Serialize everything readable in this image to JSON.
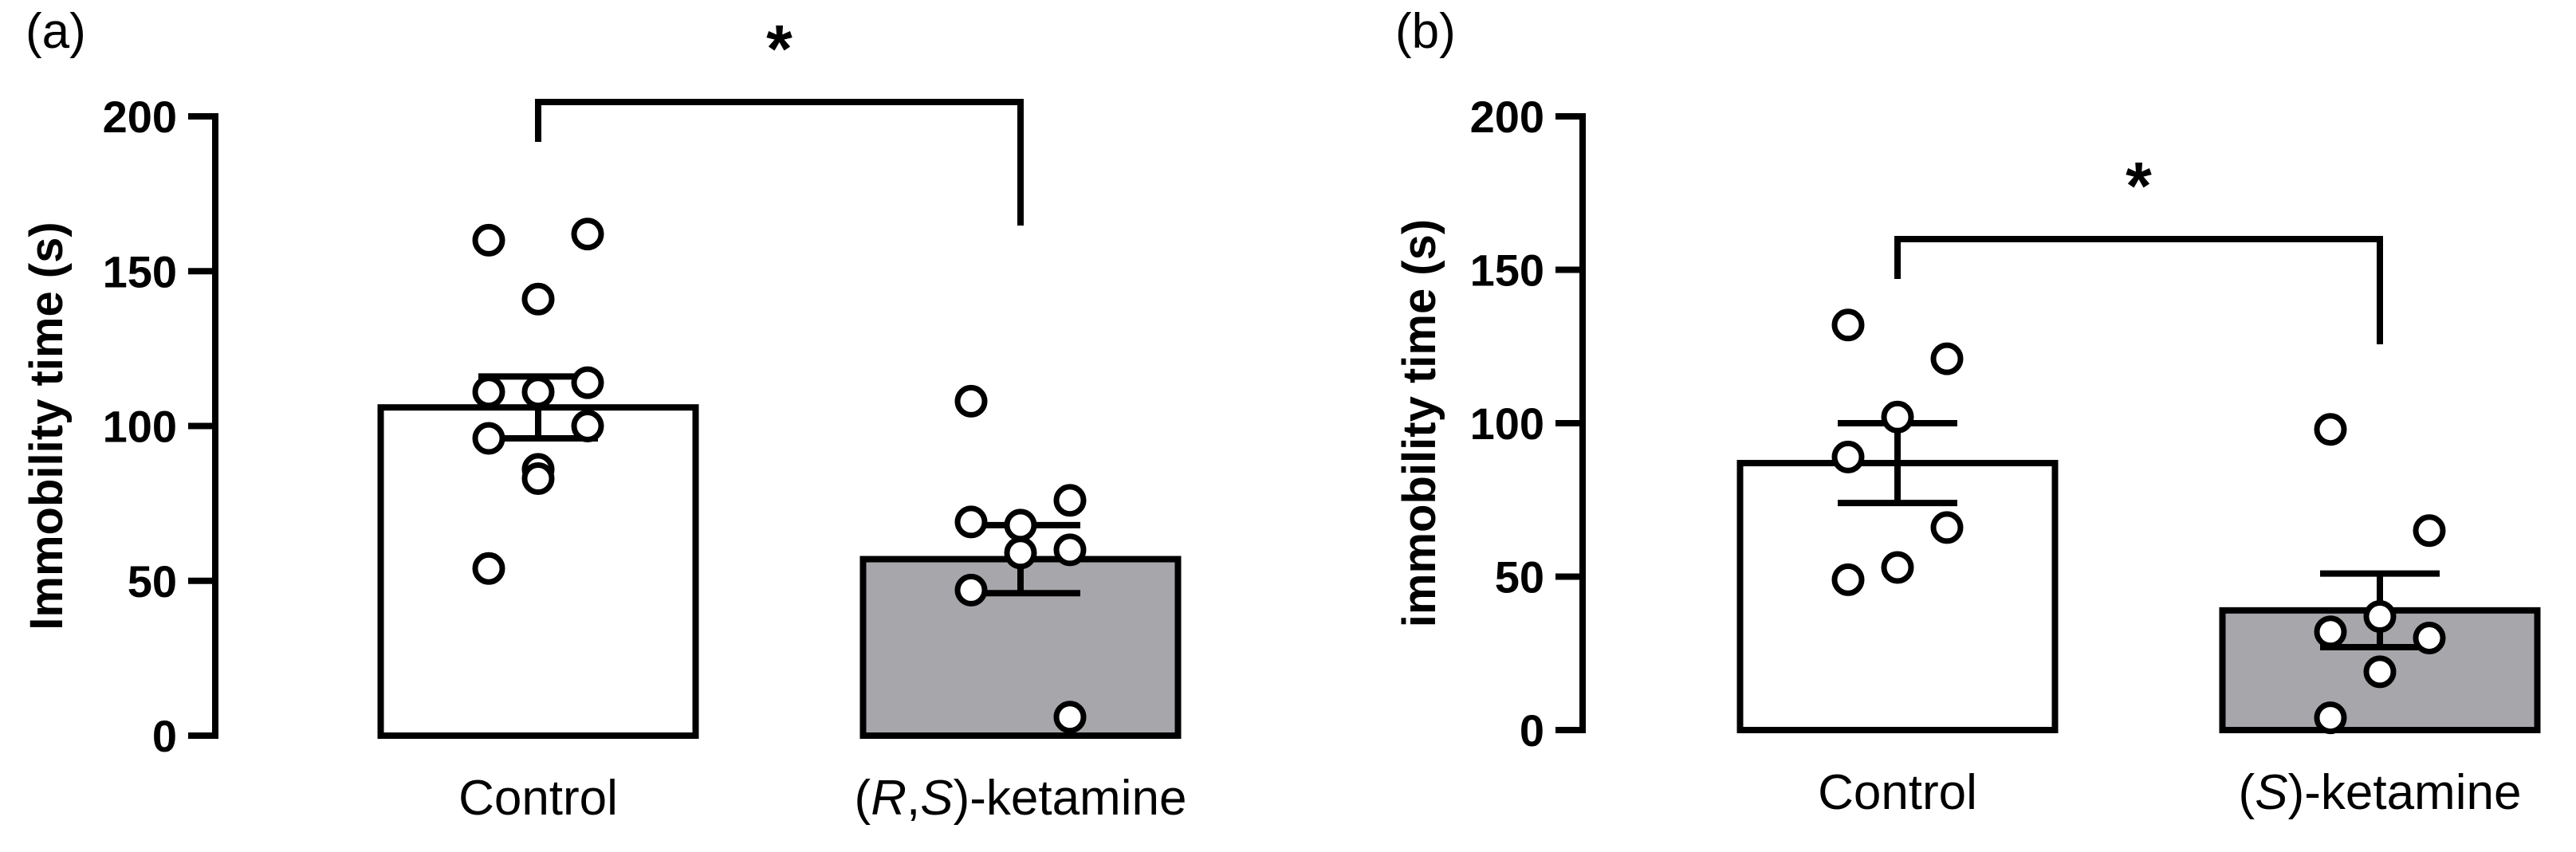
{
  "chart_data": [
    {
      "type": "bar",
      "panel_label": "(a)",
      "ylabel": "Immobility time (s)",
      "ylim": [
        0,
        200
      ],
      "yticks": [
        "0",
        "50",
        "100",
        "150",
        "200"
      ],
      "categories": [
        {
          "label": "Control",
          "italic_parts": []
        },
        {
          "label": "(R,S)-ketamine",
          "italic_parts": [
            "R",
            "S"
          ]
        }
      ],
      "bars": [
        {
          "mean": 106,
          "sem": 10,
          "fill": "#ffffff",
          "points": [
            160,
            162,
            141,
            111,
            114,
            111,
            96,
            100,
            86,
            83,
            54
          ]
        },
        {
          "mean": 57,
          "sem": 11,
          "fill": "#a7a6ab",
          "points": [
            108,
            76,
            68,
            69,
            60,
            59,
            47,
            6
          ]
        }
      ],
      "significance": {
        "between": [
          0,
          1
        ],
        "label": "*"
      }
    },
    {
      "type": "bar",
      "panel_label": "(b)",
      "ylabel": "immobility time (s)",
      "ylim": [
        0,
        200
      ],
      "yticks": [
        "0",
        "50",
        "100",
        "150",
        "200"
      ],
      "categories": [
        {
          "label": "Control",
          "italic_parts": []
        },
        {
          "label": "(S)-ketamine",
          "italic_parts": [
            "S"
          ]
        }
      ],
      "bars": [
        {
          "mean": 87,
          "sem": 13,
          "fill": "#ffffff",
          "points": [
            132,
            121,
            102,
            89,
            66,
            53,
            49
          ]
        },
        {
          "mean": 39,
          "sem": 12,
          "fill": "#a7a6ab",
          "points": [
            98,
            65,
            37,
            32,
            30,
            19,
            4
          ]
        }
      ],
      "significance": {
        "between": [
          0,
          1
        ],
        "label": "*"
      }
    }
  ]
}
